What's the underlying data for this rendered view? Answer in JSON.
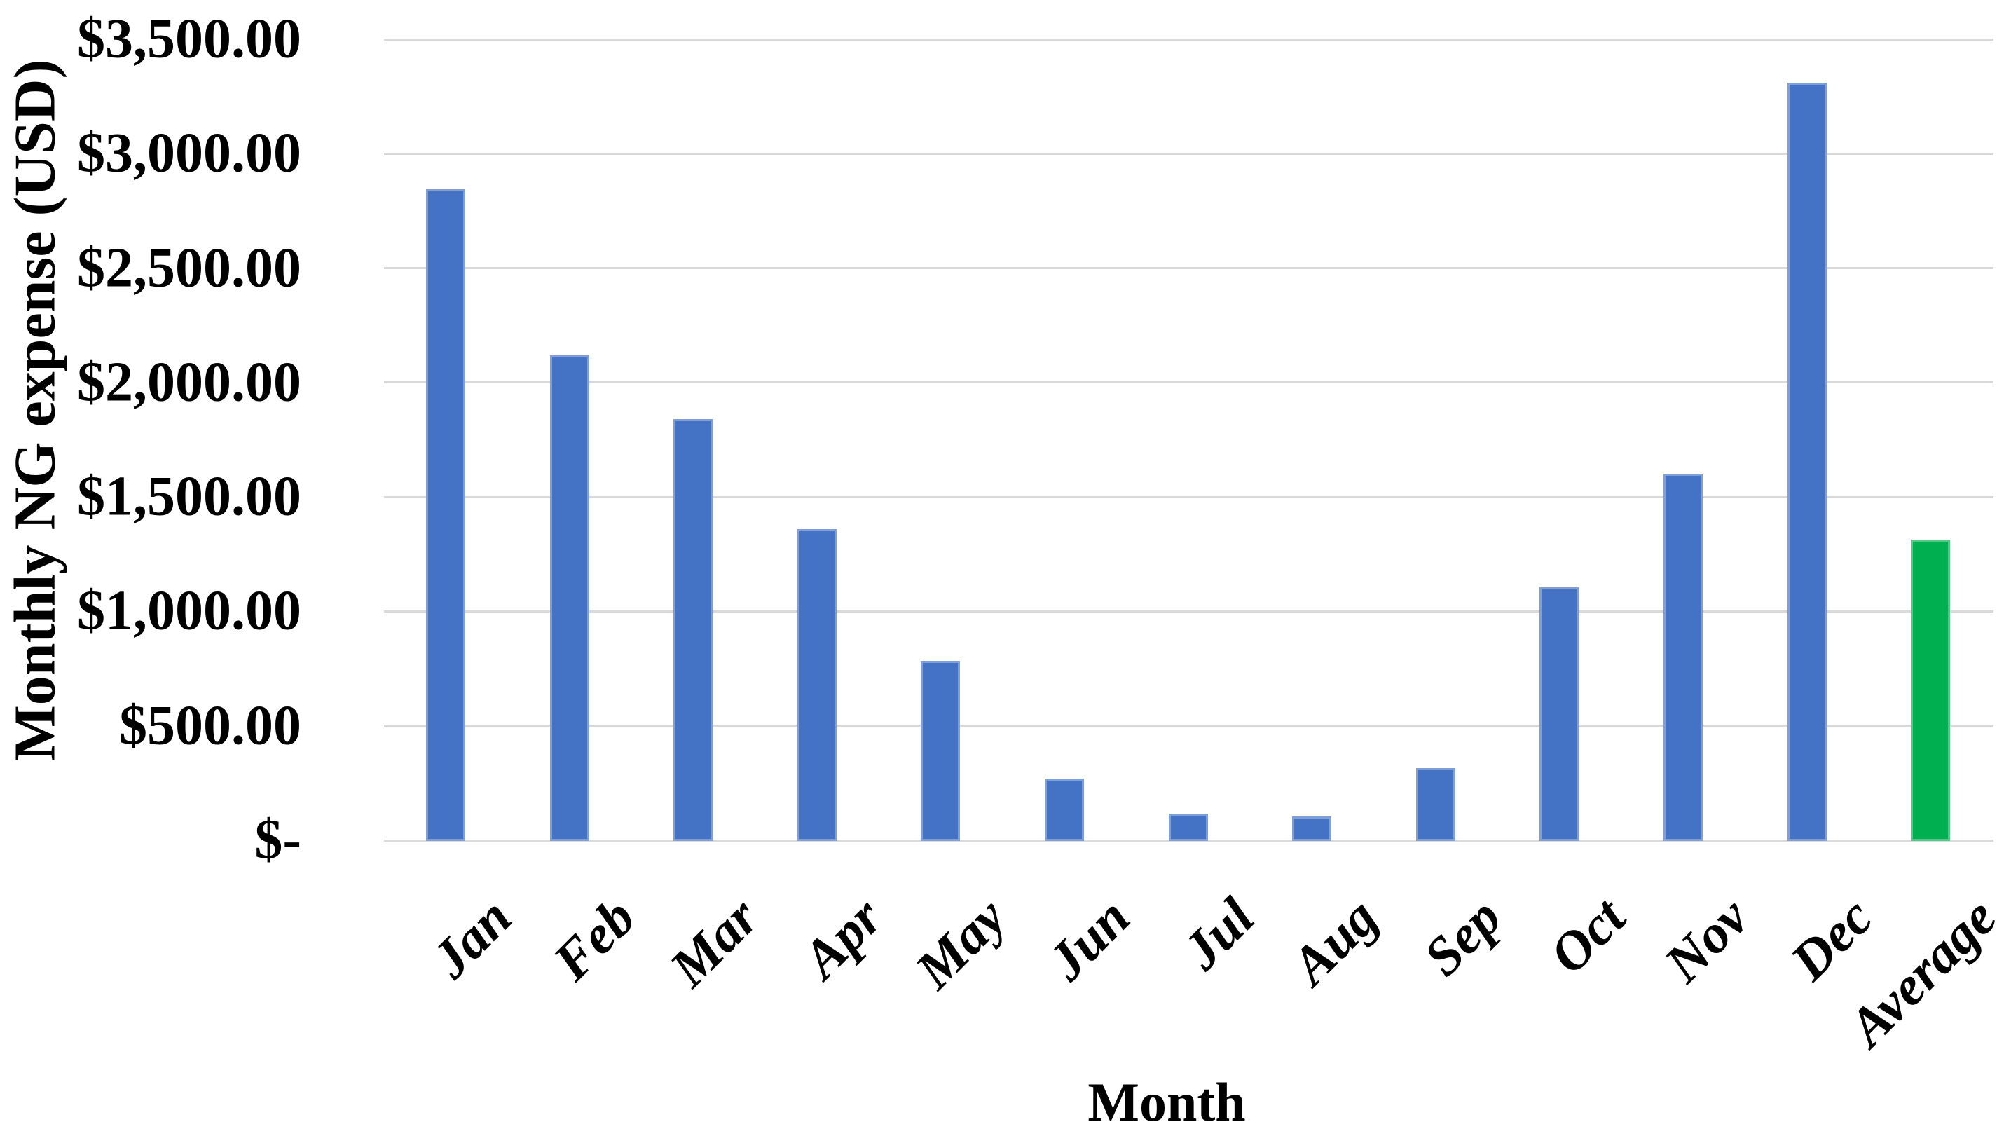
{
  "chart_data": {
    "type": "bar",
    "title": "",
    "xlabel": "Month",
    "ylabel": "Monthly NG expense (USD)",
    "categories": [
      "Jan",
      "Feb",
      "Mar",
      "Apr",
      "May",
      "Jun",
      "Jul",
      "Aug",
      "Sep",
      "Oct",
      "Nov",
      "Dec",
      "Average"
    ],
    "values": [
      2845,
      2120,
      1840,
      1360,
      785,
      270,
      115,
      105,
      315,
      1105,
      1600,
      3310,
      1315
    ],
    "ylim": [
      0,
      3500
    ],
    "ytick_step": 500,
    "ytick_labels": [
      "$-",
      "$500.00",
      "$1,000.00",
      "$1,500.00",
      "$2,000.00",
      "$2,500.00",
      "$3,000.00",
      "$3,500.00"
    ],
    "grid": true,
    "legend": "none",
    "colors": {
      "month_bar": "#4472C4",
      "average_bar": "#00B050",
      "gridline": "#d9d9d9",
      "text": "#000000",
      "background": "#ffffff"
    }
  }
}
